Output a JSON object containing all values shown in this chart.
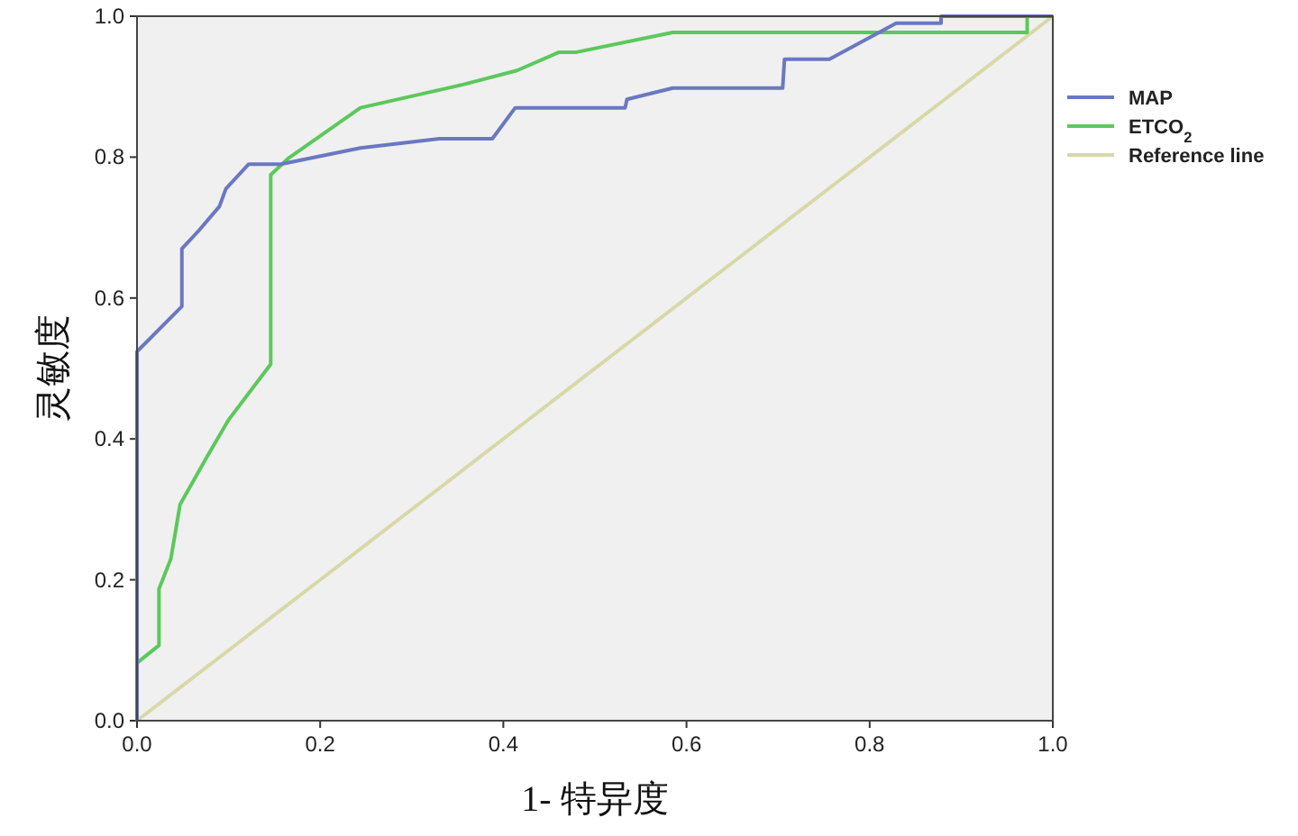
{
  "chart_data": {
    "type": "line",
    "xlabel": "1- 特异度",
    "ylabel": "灵敏度",
    "xlim": [
      0,
      1
    ],
    "ylim": [
      0,
      1
    ],
    "xticks": [
      {
        "value": 0,
        "label": "0.0"
      },
      {
        "value": 0.2,
        "label": "0.2"
      },
      {
        "value": 0.4,
        "label": "0.4"
      },
      {
        "value": 0.6,
        "label": "0.6"
      },
      {
        "value": 0.8,
        "label": "0.8"
      },
      {
        "value": 1,
        "label": "1.0"
      }
    ],
    "yticks": [
      {
        "value": 0,
        "label": "0.0"
      },
      {
        "value": 0.2,
        "label": "0.2"
      },
      {
        "value": 0.4,
        "label": "0.4"
      },
      {
        "value": 0.6,
        "label": "0.6"
      },
      {
        "value": 0.8,
        "label": "0.8"
      },
      {
        "value": 1,
        "label": "1.0"
      }
    ],
    "legend": "right",
    "marker": "none",
    "grid": false,
    "series": [
      {
        "name": "MAP",
        "color": "#6a78c0",
        "x": [
          0,
          0,
          0.049,
          0.049,
          0.067,
          0.09,
          0.097,
          0.122,
          0.157,
          0.244,
          0.33,
          0.388,
          0.413,
          0.533,
          0.535,
          0.585,
          0.705,
          0.707,
          0.756,
          0.829,
          0.878,
          0.878,
          1
        ],
        "values": [
          0,
          0.524,
          0.588,
          0.67,
          0.695,
          0.73,
          0.755,
          0.79,
          0.79,
          0.813,
          0.826,
          0.826,
          0.87,
          0.87,
          0.882,
          0.898,
          0.898,
          0.939,
          0.939,
          0.99,
          0.99,
          1,
          1
        ]
      },
      {
        "name": "ETCO$_{2}$",
        "color": "#5cc85c",
        "x": [
          0,
          0,
          0.024,
          0.024,
          0.037,
          0.047,
          0.077,
          0.1,
          0.146,
          0.146,
          0.165,
          0.244,
          0.356,
          0.415,
          0.461,
          0.48,
          0.585,
          0.972,
          0.972
        ],
        "values": [
          0,
          0.082,
          0.107,
          0.187,
          0.23,
          0.307,
          0.376,
          0.427,
          0.506,
          0.775,
          0.798,
          0.87,
          0.903,
          0.923,
          0.949,
          0.949,
          0.977,
          0.977,
          1
        ]
      },
      {
        "name": "Reference line",
        "color": "#d8d8a8",
        "x": [
          0,
          1
        ],
        "values": [
          0,
          1
        ]
      }
    ]
  }
}
